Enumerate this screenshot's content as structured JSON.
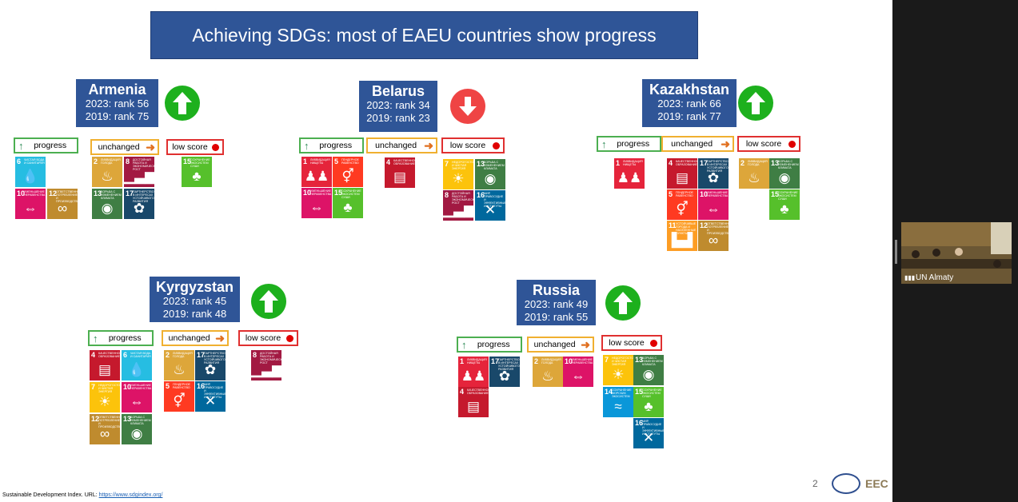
{
  "slide": {
    "title": "Achieving SDGs: most of EAEU countries show progress",
    "category_labels": {
      "progress": "progress",
      "unchanged": "unchanged",
      "low": "low score"
    },
    "countries": [
      {
        "name": "Armenia",
        "rank_2023": "2023: rank 56",
        "rank_2019": "2019: rank 75",
        "trend": "up",
        "progress": [
          6,
          10,
          12
        ],
        "unchanged": [
          2,
          8,
          13,
          17
        ],
        "low": [
          15
        ]
      },
      {
        "name": "Belarus",
        "rank_2023": "2023: rank 34",
        "rank_2019": "2019: rank 23",
        "trend": "down",
        "progress": [
          1,
          5,
          10,
          15
        ],
        "unchanged": [
          4
        ],
        "low": [
          7,
          13,
          8,
          16
        ]
      },
      {
        "name": "Kazakhstan",
        "rank_2023": "2023: rank 66",
        "rank_2019": "2019: rank 77",
        "trend": "up",
        "progress": [
          1
        ],
        "unchanged": [
          4,
          17,
          5,
          10,
          11,
          12
        ],
        "low": [
          2,
          13,
          15
        ]
      },
      {
        "name": "Kyrgyzstan",
        "rank_2023": "2023: rank 45",
        "rank_2019": "2019: rank 48",
        "trend": "up",
        "progress": [
          4,
          6,
          7,
          10,
          12,
          13
        ],
        "unchanged": [
          2,
          17,
          5,
          16
        ],
        "low": [
          8
        ]
      },
      {
        "name": "Russia",
        "rank_2023": "2023: rank 49",
        "rank_2019": "2019: rank 55",
        "trend": "up",
        "progress": [
          1,
          17,
          4
        ],
        "unchanged": [
          2,
          10
        ],
        "low": [
          7,
          13,
          14,
          15,
          16
        ]
      }
    ],
    "sdg_titles": {
      "1": "Ликвидация нищеты",
      "2": "Ликвидация голода",
      "4": "Качественное образование",
      "5": "Гендерное равенство",
      "6": "Чистая вода и санитария",
      "7": "Недорогостоящая и чистая энергия",
      "8": "Достойная работа и экономический рост",
      "10": "Уменьшение неравенства",
      "11": "Устойчивые города и населенные пункты",
      "12": "Ответственное потребление и производство",
      "13": "Борьба с изменением климата",
      "14": "Сохранение морских экосистем",
      "15": "Сохранение экосистем суши",
      "16": "Мир, правосудие и эффективные институты",
      "17": "Партнерство в интересах устойчивого развития"
    },
    "sdg_colors": {
      "1": "#e5243b",
      "2": "#dda63a",
      "4": "#c5192d",
      "5": "#ff3a21",
      "6": "#26bde2",
      "7": "#fcc30b",
      "8": "#a21942",
      "10": "#dd1367",
      "11": "#fd9d24",
      "12": "#bf8b2e",
      "13": "#3f7e44",
      "14": "#0a97d9",
      "15": "#56c02b",
      "16": "#00689d",
      "17": "#19486a"
    },
    "sdg_icons": {
      "1": "people-icon",
      "2": "bowl-icon",
      "4": "book-icon",
      "5": "gender-icon",
      "6": "water-drop-icon",
      "7": "sun-icon",
      "8": "growth-chart-icon",
      "10": "equality-icon",
      "11": "city-icon",
      "12": "infinity-icon",
      "13": "eye-globe-icon",
      "14": "fish-icon",
      "15": "tree-icon",
      "16": "dove-icon",
      "17": "flower-rings-icon"
    },
    "page_number": "2",
    "logo_text": "EEC",
    "footnote": {
      "prefix": "Sustainable Development Index. URL: ",
      "link": "https://www.sdgindex.org/"
    }
  },
  "video_tile": {
    "label": "UN Almaty"
  }
}
